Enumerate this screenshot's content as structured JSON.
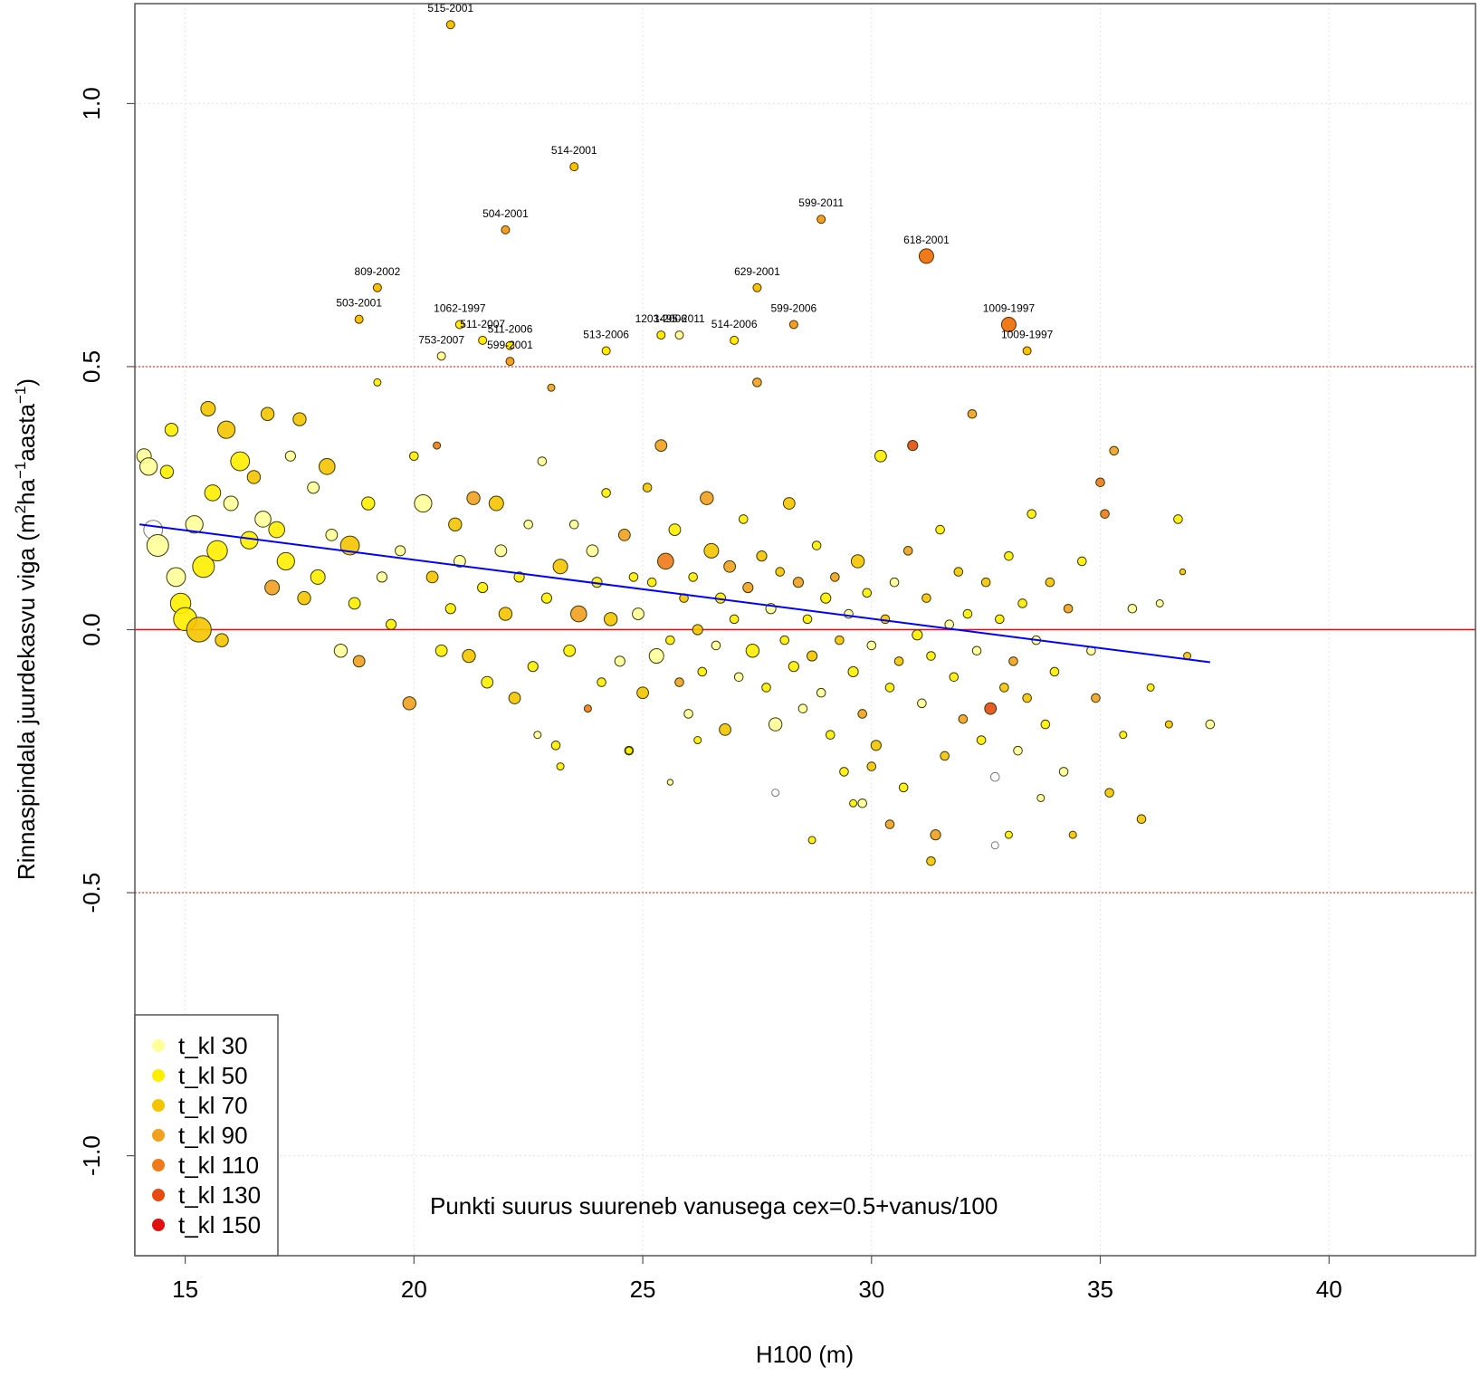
{
  "chart_data": {
    "type": "scatter",
    "xlabel": "H100 (m)",
    "ylabel": {
      "base": "Rinnaspindala juurdekasvu viga  (m",
      "sup1": "2",
      "mid1": "ha",
      "sup2": "−1",
      "mid2": "aasta",
      "sup3": "−1",
      "end": ")"
    },
    "xlim": [
      13.9,
      43.2
    ],
    "ylim": [
      -1.19,
      1.19
    ],
    "x_ticks": [
      15,
      20,
      25,
      30,
      35,
      40
    ],
    "y_ticks": [
      -1.0,
      -0.5,
      0.0,
      0.5,
      1.0
    ],
    "x_tick_labels": [
      "15",
      "20",
      "25",
      "30",
      "35",
      "40"
    ],
    "y_tick_labels": [
      "-1.0",
      "-0.5",
      "0.0",
      "0.5",
      "1.0"
    ],
    "grid": true,
    "reference_lines": [
      {
        "y": 0.0,
        "style": "solid",
        "color": "#ff0000"
      },
      {
        "y": 0.5,
        "style": "dotted",
        "color": "#ff0000"
      },
      {
        "y": -0.5,
        "style": "dotted",
        "color": "#ff0000"
      }
    ],
    "trend_line": {
      "x": [
        14.0,
        37.4
      ],
      "y": [
        0.2,
        -0.062
      ],
      "color": "#0000ff"
    },
    "annotation": "Punkti suurus suureneb vanusega cex=0.5+vanus/100",
    "legend": {
      "position": "bottom-left",
      "entries": [
        {
          "label": "t_kl 30",
          "color": "#ffff99"
        },
        {
          "label": "t_kl 50",
          "color": "#ffee00"
        },
        {
          "label": "t_kl 70",
          "color": "#f5c400"
        },
        {
          "label": "t_kl 90",
          "color": "#f2a020"
        },
        {
          "label": "t_kl 110",
          "color": "#ee7a1a"
        },
        {
          "label": "t_kl 130",
          "color": "#e64a10"
        },
        {
          "label": "t_kl 150",
          "color": "#e01010"
        }
      ]
    },
    "labeled_points": [
      {
        "x": 20.8,
        "y": 1.15,
        "label": "515-2001",
        "cls": 3
      },
      {
        "x": 23.5,
        "y": 0.88,
        "label": "514-2001",
        "cls": 3
      },
      {
        "x": 22.0,
        "y": 0.76,
        "label": "504-2001",
        "cls": 4
      },
      {
        "x": 28.9,
        "y": 0.78,
        "label": "599-2011",
        "cls": 4
      },
      {
        "x": 31.2,
        "y": 0.71,
        "label": "618-2001",
        "cls": 5
      },
      {
        "x": 19.2,
        "y": 0.65,
        "label": "809-2002",
        "cls": 3
      },
      {
        "x": 27.5,
        "y": 0.65,
        "label": "629-2001",
        "cls": 3
      },
      {
        "x": 18.8,
        "y": 0.59,
        "label": "503-2001",
        "cls": 3
      },
      {
        "x": 21.0,
        "y": 0.58,
        "label": "1062-1997",
        "cls": 2
      },
      {
        "x": 28.3,
        "y": 0.58,
        "label": "599-2006",
        "cls": 4
      },
      {
        "x": 33.0,
        "y": 0.58,
        "label": "1009-1997",
        "cls": 5
      },
      {
        "x": 21.5,
        "y": 0.55,
        "label": "511-2007",
        "cls": 2
      },
      {
        "x": 25.4,
        "y": 0.56,
        "label": "1203-2006",
        "cls": 2
      },
      {
        "x": 25.8,
        "y": 0.56,
        "label": "1495-2011",
        "cls": 1
      },
      {
        "x": 27.0,
        "y": 0.55,
        "label": "514-2006",
        "cls": 2
      },
      {
        "x": 22.1,
        "y": 0.54,
        "label": "511-2006",
        "cls": 2
      },
      {
        "x": 24.2,
        "y": 0.53,
        "label": "513-2006",
        "cls": 2
      },
      {
        "x": 33.4,
        "y": 0.53,
        "label": "1009-1997",
        "cls": 3
      },
      {
        "x": 20.6,
        "y": 0.52,
        "label": "753-2007",
        "cls": 1
      },
      {
        "x": 22.1,
        "y": 0.51,
        "label": "599-2001",
        "cls": 4
      }
    ],
    "points": [
      [
        14.1,
        0.33,
        1,
        1.0
      ],
      [
        14.2,
        0.31,
        1,
        1.2
      ],
      [
        14.3,
        0.19,
        0,
        1.3
      ],
      [
        14.4,
        0.16,
        1,
        1.5
      ],
      [
        14.6,
        0.3,
        2,
        0.9
      ],
      [
        14.7,
        0.38,
        2,
        0.9
      ],
      [
        14.8,
        0.1,
        1,
        1.3
      ],
      [
        14.9,
        0.05,
        2,
        1.4
      ],
      [
        15.0,
        0.02,
        2,
        1.6
      ],
      [
        15.2,
        0.2,
        1,
        1.2
      ],
      [
        15.3,
        0.0,
        3,
        1.7
      ],
      [
        15.4,
        0.12,
        2,
        1.5
      ],
      [
        15.5,
        0.42,
        3,
        1.0
      ],
      [
        15.6,
        0.26,
        2,
        1.1
      ],
      [
        15.7,
        0.15,
        2,
        1.4
      ],
      [
        15.8,
        -0.02,
        3,
        0.9
      ],
      [
        15.9,
        0.38,
        3,
        1.2
      ],
      [
        16.0,
        0.24,
        1,
        1.0
      ],
      [
        16.2,
        0.32,
        2,
        1.3
      ],
      [
        16.4,
        0.17,
        2,
        1.2
      ],
      [
        16.5,
        0.29,
        3,
        0.9
      ],
      [
        16.7,
        0.21,
        1,
        1.1
      ],
      [
        16.8,
        0.41,
        3,
        0.9
      ],
      [
        16.9,
        0.08,
        4,
        1.0
      ],
      [
        17.0,
        0.19,
        2,
        1.1
      ],
      [
        17.2,
        0.13,
        2,
        1.2
      ],
      [
        17.3,
        0.33,
        1,
        0.7
      ],
      [
        17.5,
        0.4,
        3,
        0.9
      ],
      [
        17.6,
        0.06,
        3,
        0.9
      ],
      [
        17.8,
        0.27,
        1,
        0.8
      ],
      [
        17.9,
        0.1,
        2,
        1.0
      ],
      [
        18.1,
        0.31,
        3,
        1.1
      ],
      [
        18.2,
        0.18,
        1,
        0.8
      ],
      [
        18.4,
        -0.04,
        1,
        0.9
      ],
      [
        18.6,
        0.16,
        3,
        1.3
      ],
      [
        18.7,
        0.05,
        2,
        0.8
      ],
      [
        18.8,
        -0.06,
        4,
        0.8
      ],
      [
        19.0,
        0.24,
        2,
        0.9
      ],
      [
        19.2,
        0.47,
        2,
        0.5
      ],
      [
        19.3,
        0.1,
        1,
        0.7
      ],
      [
        19.5,
        0.01,
        2,
        0.7
      ],
      [
        19.7,
        0.15,
        1,
        0.7
      ],
      [
        19.9,
        -0.14,
        4,
        0.9
      ],
      [
        20.0,
        0.33,
        2,
        0.6
      ],
      [
        20.2,
        0.24,
        1,
        1.2
      ],
      [
        20.4,
        0.1,
        3,
        0.8
      ],
      [
        20.5,
        0.35,
        5,
        0.5
      ],
      [
        20.6,
        -0.04,
        2,
        0.8
      ],
      [
        20.8,
        0.04,
        2,
        0.7
      ],
      [
        20.9,
        0.2,
        3,
        0.9
      ],
      [
        21.0,
        0.13,
        1,
        0.8
      ],
      [
        21.2,
        -0.05,
        3,
        0.9
      ],
      [
        21.3,
        0.25,
        4,
        0.9
      ],
      [
        21.5,
        0.08,
        2,
        0.7
      ],
      [
        21.6,
        -0.1,
        2,
        0.8
      ],
      [
        21.8,
        0.24,
        3,
        1.0
      ],
      [
        21.9,
        0.15,
        1,
        0.8
      ],
      [
        22.0,
        0.03,
        3,
        0.9
      ],
      [
        22.2,
        -0.13,
        3,
        0.8
      ],
      [
        22.3,
        0.1,
        2,
        0.7
      ],
      [
        22.5,
        0.2,
        1,
        0.6
      ],
      [
        22.6,
        -0.07,
        2,
        0.7
      ],
      [
        22.8,
        0.32,
        1,
        0.6
      ],
      [
        22.9,
        0.06,
        2,
        0.7
      ],
      [
        23.0,
        0.46,
        4,
        0.5
      ],
      [
        23.1,
        -0.22,
        2,
        0.6
      ],
      [
        23.2,
        0.12,
        3,
        1.0
      ],
      [
        23.4,
        -0.04,
        2,
        0.8
      ],
      [
        23.5,
        0.2,
        1,
        0.6
      ],
      [
        23.6,
        0.03,
        4,
        1.1
      ],
      [
        23.8,
        -0.15,
        5,
        0.5
      ],
      [
        23.9,
        0.15,
        1,
        0.8
      ],
      [
        24.0,
        0.09,
        2,
        0.7
      ],
      [
        24.1,
        -0.1,
        2,
        0.6
      ],
      [
        24.2,
        0.26,
        2,
        0.6
      ],
      [
        24.3,
        0.02,
        3,
        0.9
      ],
      [
        24.5,
        -0.06,
        1,
        0.7
      ],
      [
        24.6,
        0.18,
        4,
        0.8
      ],
      [
        24.7,
        -0.23,
        2,
        0.6
      ],
      [
        24.8,
        0.1,
        2,
        0.6
      ],
      [
        24.9,
        0.03,
        1,
        0.8
      ],
      [
        25.0,
        -0.12,
        3,
        0.8
      ],
      [
        25.1,
        0.27,
        3,
        0.6
      ],
      [
        25.2,
        0.09,
        2,
        0.6
      ],
      [
        25.3,
        -0.05,
        1,
        1.0
      ],
      [
        25.4,
        0.35,
        4,
        0.8
      ],
      [
        25.5,
        0.13,
        5,
        1.1
      ],
      [
        25.6,
        -0.02,
        2,
        0.6
      ],
      [
        25.7,
        0.19,
        2,
        0.8
      ],
      [
        25.8,
        -0.1,
        4,
        0.6
      ],
      [
        25.9,
        0.06,
        3,
        0.6
      ],
      [
        26.0,
        -0.16,
        1,
        0.6
      ],
      [
        26.1,
        0.1,
        2,
        0.6
      ],
      [
        26.2,
        0.0,
        3,
        0.7
      ],
      [
        26.3,
        -0.08,
        2,
        0.6
      ],
      [
        26.4,
        0.25,
        4,
        0.9
      ],
      [
        26.5,
        0.15,
        3,
        1.0
      ],
      [
        26.6,
        -0.03,
        1,
        0.6
      ],
      [
        26.7,
        0.06,
        2,
        0.7
      ],
      [
        26.8,
        -0.19,
        3,
        0.8
      ],
      [
        26.9,
        0.12,
        4,
        0.8
      ],
      [
        27.0,
        0.02,
        2,
        0.6
      ],
      [
        27.1,
        -0.09,
        1,
        0.6
      ],
      [
        27.2,
        0.21,
        2,
        0.6
      ],
      [
        27.3,
        0.08,
        4,
        0.7
      ],
      [
        27.4,
        -0.04,
        2,
        0.9
      ],
      [
        27.5,
        0.47,
        4,
        0.6
      ],
      [
        27.6,
        0.14,
        3,
        0.7
      ],
      [
        27.7,
        -0.11,
        2,
        0.6
      ],
      [
        27.8,
        0.04,
        1,
        0.7
      ],
      [
        27.9,
        -0.18,
        1,
        0.9
      ],
      [
        28.0,
        0.11,
        3,
        0.6
      ],
      [
        28.1,
        -0.02,
        2,
        0.6
      ],
      [
        28.2,
        0.24,
        3,
        0.8
      ],
      [
        28.3,
        -0.07,
        2,
        0.7
      ],
      [
        28.4,
        0.09,
        4,
        0.7
      ],
      [
        28.5,
        -0.15,
        1,
        0.6
      ],
      [
        28.6,
        0.02,
        2,
        0.6
      ],
      [
        28.7,
        -0.05,
        3,
        0.7
      ],
      [
        28.8,
        0.16,
        2,
        0.6
      ],
      [
        28.9,
        -0.12,
        1,
        0.6
      ],
      [
        29.0,
        0.06,
        2,
        0.7
      ],
      [
        29.1,
        -0.2,
        2,
        0.6
      ],
      [
        29.2,
        0.1,
        4,
        0.6
      ],
      [
        29.3,
        -0.02,
        3,
        0.6
      ],
      [
        29.4,
        -0.27,
        2,
        0.6
      ],
      [
        29.5,
        0.03,
        1,
        0.6
      ],
      [
        29.6,
        -0.08,
        2,
        0.7
      ],
      [
        29.7,
        0.13,
        3,
        0.9
      ],
      [
        29.8,
        -0.16,
        4,
        0.6
      ],
      [
        29.9,
        0.07,
        2,
        0.6
      ],
      [
        30.0,
        -0.03,
        1,
        0.6
      ],
      [
        30.1,
        -0.22,
        3,
        0.7
      ],
      [
        30.2,
        0.33,
        2,
        0.8
      ],
      [
        30.3,
        0.02,
        3,
        0.6
      ],
      [
        30.4,
        -0.11,
        2,
        0.6
      ],
      [
        30.5,
        0.09,
        1,
        0.6
      ],
      [
        30.6,
        -0.06,
        3,
        0.6
      ],
      [
        30.7,
        -0.3,
        2,
        0.6
      ],
      [
        30.8,
        0.15,
        4,
        0.6
      ],
      [
        30.9,
        0.35,
        6,
        0.7
      ],
      [
        31.0,
        -0.01,
        2,
        0.7
      ],
      [
        31.1,
        -0.14,
        1,
        0.6
      ],
      [
        31.2,
        0.06,
        3,
        0.6
      ],
      [
        31.3,
        -0.05,
        2,
        0.6
      ],
      [
        31.4,
        -0.39,
        4,
        0.7
      ],
      [
        31.5,
        0.19,
        2,
        0.6
      ],
      [
        31.6,
        -0.24,
        3,
        0.6
      ],
      [
        31.7,
        0.01,
        1,
        0.6
      ],
      [
        31.8,
        -0.09,
        2,
        0.6
      ],
      [
        31.9,
        0.11,
        3,
        0.6
      ],
      [
        32.0,
        -0.17,
        4,
        0.6
      ],
      [
        32.1,
        0.03,
        2,
        0.6
      ],
      [
        32.2,
        0.41,
        4,
        0.6
      ],
      [
        32.3,
        -0.04,
        1,
        0.6
      ],
      [
        32.4,
        -0.21,
        2,
        0.6
      ],
      [
        32.5,
        0.09,
        3,
        0.6
      ],
      [
        32.6,
        -0.15,
        6,
        0.8
      ],
      [
        32.7,
        -0.28,
        0,
        0.6
      ],
      [
        32.8,
        0.02,
        2,
        0.6
      ],
      [
        32.9,
        -0.11,
        3,
        0.6
      ],
      [
        33.0,
        0.14,
        2,
        0.6
      ],
      [
        33.1,
        -0.06,
        4,
        0.6
      ],
      [
        33.2,
        -0.23,
        1,
        0.6
      ],
      [
        33.3,
        0.05,
        2,
        0.6
      ],
      [
        33.4,
        -0.13,
        3,
        0.6
      ],
      [
        33.5,
        0.22,
        2,
        0.6
      ],
      [
        33.6,
        -0.02,
        1,
        0.6
      ],
      [
        33.8,
        -0.18,
        2,
        0.6
      ],
      [
        33.9,
        0.09,
        3,
        0.6
      ],
      [
        34.0,
        -0.08,
        2,
        0.6
      ],
      [
        34.2,
        -0.27,
        1,
        0.6
      ],
      [
        34.3,
        0.04,
        4,
        0.6
      ],
      [
        34.4,
        -0.39,
        3,
        0.5
      ],
      [
        34.6,
        0.13,
        2,
        0.6
      ],
      [
        34.8,
        -0.04,
        1,
        0.6
      ],
      [
        35.0,
        0.28,
        5,
        0.6
      ],
      [
        35.1,
        0.22,
        5,
        0.6
      ],
      [
        35.2,
        -0.31,
        3,
        0.6
      ],
      [
        35.3,
        0.34,
        4,
        0.6
      ],
      [
        35.5,
        -0.2,
        2,
        0.5
      ],
      [
        35.7,
        0.04,
        1,
        0.6
      ],
      [
        35.9,
        -0.36,
        3,
        0.6
      ],
      [
        36.1,
        -0.11,
        2,
        0.5
      ],
      [
        36.3,
        0.05,
        1,
        0.5
      ],
      [
        36.5,
        -0.18,
        3,
        0.5
      ],
      [
        36.7,
        0.21,
        2,
        0.6
      ],
      [
        36.9,
        -0.05,
        3,
        0.5
      ],
      [
        37.4,
        -0.18,
        1,
        0.6
      ],
      [
        36.8,
        0.11,
        3,
        0.4
      ],
      [
        34.9,
        -0.13,
        4,
        0.6
      ],
      [
        33.7,
        -0.32,
        1,
        0.5
      ],
      [
        28.7,
        -0.4,
        2,
        0.5
      ],
      [
        29.8,
        -0.33,
        1,
        0.6
      ],
      [
        27.9,
        -0.31,
        0,
        0.5
      ],
      [
        31.3,
        -0.44,
        3,
        0.6
      ],
      [
        32.7,
        -0.41,
        0,
        0.5
      ],
      [
        33.0,
        -0.39,
        2,
        0.5
      ],
      [
        26.2,
        -0.21,
        2,
        0.5
      ],
      [
        23.2,
        -0.26,
        2,
        0.5
      ],
      [
        22.7,
        -0.2,
        1,
        0.5
      ],
      [
        25.6,
        -0.29,
        1,
        0.4
      ],
      [
        24.7,
        -0.23,
        2,
        0.5
      ],
      [
        30.4,
        -0.37,
        4,
        0.6
      ],
      [
        30.0,
        -0.26,
        3,
        0.6
      ],
      [
        29.6,
        -0.33,
        2,
        0.5
      ]
    ]
  }
}
